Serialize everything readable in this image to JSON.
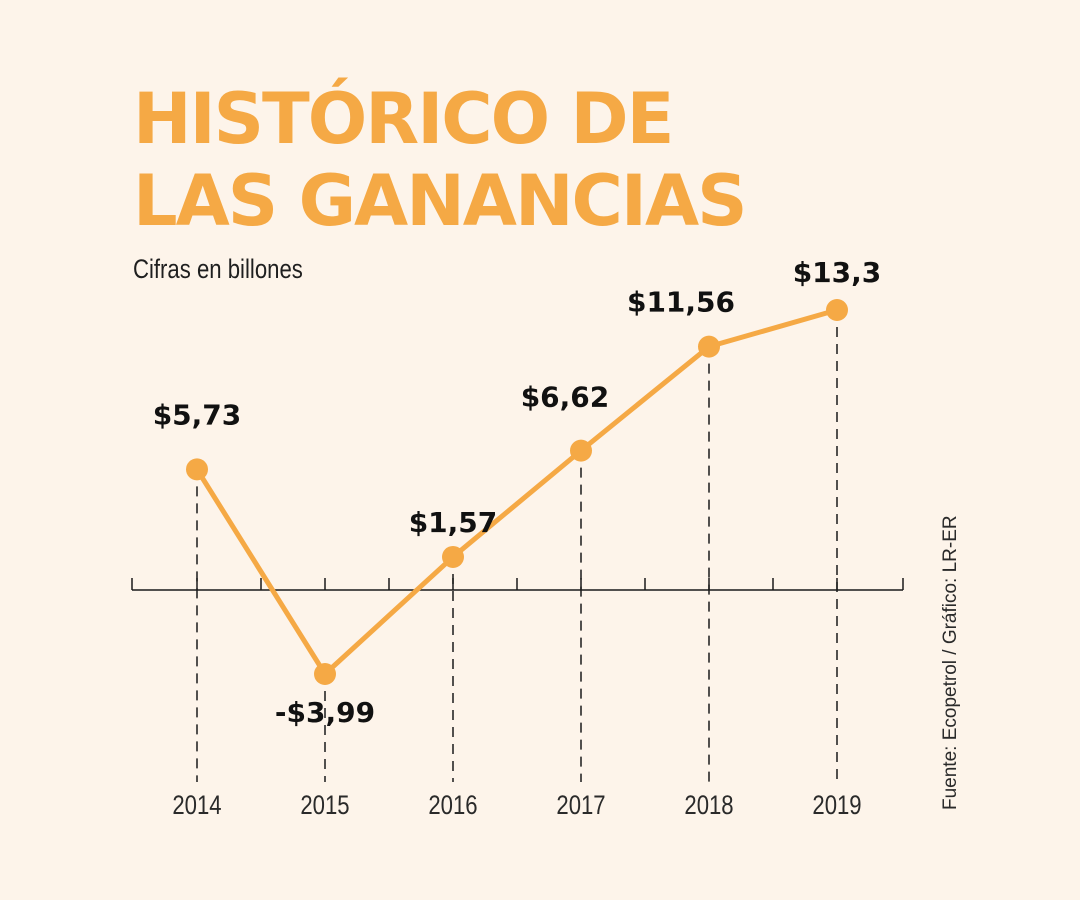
{
  "header": {
    "title_line1": "HISTÓRICO DE",
    "title_line2": "LAS GANANCIAS",
    "subtitle": "Cifras en billones"
  },
  "source": "Fuente: Ecopetrol / Gráfico: LR-ER",
  "colors": {
    "accent": "#f5a945",
    "background": "#fdf4ea",
    "axis": "#1a1a1a"
  },
  "chart_data": {
    "type": "line",
    "title": "HISTÓRICO DE LAS GANANCIAS",
    "subtitle": "Cifras en billones",
    "x": [
      "2014",
      "2015",
      "2016",
      "2017",
      "2018",
      "2019"
    ],
    "values": [
      5.73,
      -3.99,
      1.57,
      6.62,
      11.56,
      13.3
    ],
    "value_labels": [
      "$5,73",
      "-$3,99",
      "$1,57",
      "$6,62",
      "$11,56",
      "$13,3"
    ],
    "ylim": [
      -6,
      15
    ],
    "baseline": 0,
    "grid": false,
    "legend": "none"
  }
}
